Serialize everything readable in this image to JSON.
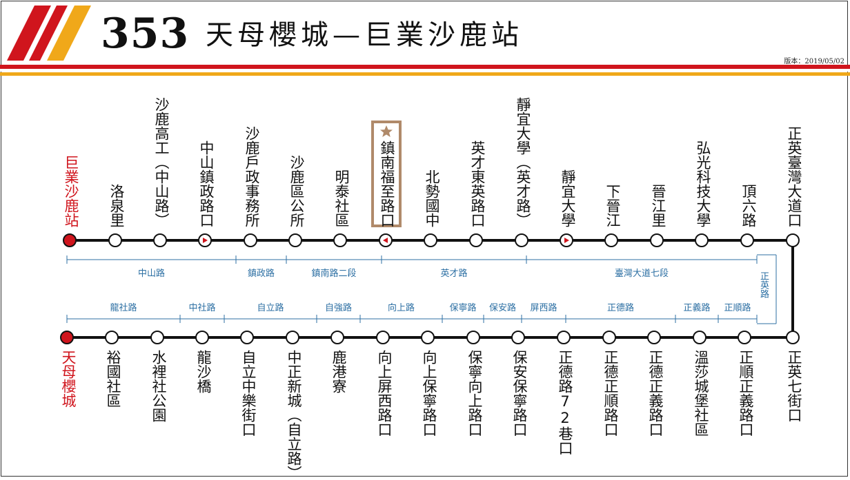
{
  "header": {
    "route_number": "353",
    "route_title": "天母櫻城—巨業沙鹿站",
    "version": "版本：2019/05/02"
  },
  "colors": {
    "accent_red": "#d0151d",
    "accent_orange": "#f0a81a",
    "road_blue": "#2c6fa3",
    "highlight": "#b08a6a"
  },
  "upper_line": {
    "stops": [
      "巨業沙鹿站",
      "洛泉里",
      "沙鹿高工（中山路）",
      "中山鎮政路口",
      "沙鹿戶政事務所",
      "沙鹿區公所",
      "明泰社區",
      "鎮南福至路口",
      "北勢國中",
      "英才東英路口",
      "靜宜大學（英才路）",
      "靜宜大學",
      "下晉江",
      "晉江里",
      "弘光科技大學",
      "頂六路",
      "正英臺灣大道口"
    ],
    "roads": [
      "中山路",
      "鎮政路",
      "鎮南路二段",
      "英才路",
      "臺灣大道七段"
    ]
  },
  "connector_road": "正英路",
  "lower_line": {
    "stops": [
      "天母櫻城",
      "裕國社區",
      "水裡社公園",
      "龍沙橋",
      "自立中樂街口",
      "中正新城（自立路）",
      "鹿港寮",
      "向上屏西路口",
      "向上保寧路口",
      "保寧向上路口",
      "保安保寧路口",
      "正德路72巷口",
      "正德正順路口",
      "正德正義路口",
      "溫莎城堡社區",
      "正順正義路口",
      "正英七街口"
    ],
    "roads": [
      "龍社路",
      "中社路",
      "自立路",
      "自強路",
      "向上路",
      "保寧路",
      "保安路",
      "屏西路",
      "正德路",
      "正義路",
      "正順路"
    ]
  }
}
